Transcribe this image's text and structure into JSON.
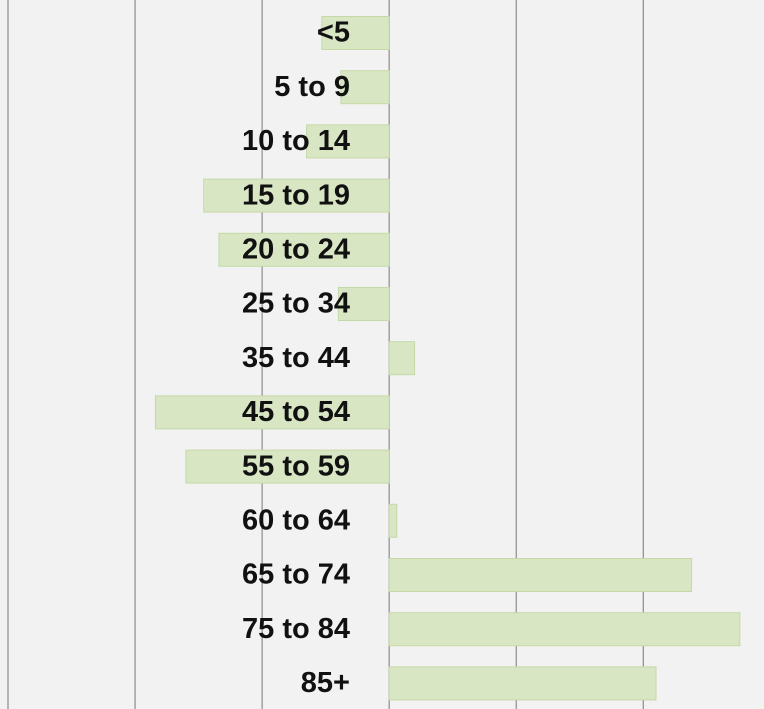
{
  "chart_data": {
    "type": "bar",
    "orientation": "horizontal",
    "categories": [
      "<5",
      "5 to 9",
      "10 to 14",
      "15 to 19",
      "20 to 24",
      "25 to 34",
      "35 to 44",
      "45 to 54",
      "55 to 59",
      "60 to 64",
      "65 to 74",
      "75 to 84",
      "85+"
    ],
    "values": [
      -0.53,
      -0.38,
      -0.65,
      -1.46,
      -1.34,
      -0.4,
      0.2,
      -1.84,
      -1.6,
      0.06,
      2.38,
      2.76,
      2.1
    ],
    "color": "#d9e6c4",
    "xlim": [
      -3,
      2.95
    ],
    "xticks": [
      -3,
      -2,
      -1,
      0,
      1,
      2
    ],
    "grid": true
  }
}
